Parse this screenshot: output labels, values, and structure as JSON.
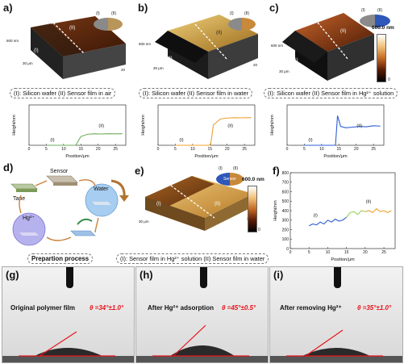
{
  "panel_labels": {
    "a": "a)",
    "b": "b)",
    "c": "c)",
    "d": "d)",
    "e": "e)",
    "f": "f)",
    "g": "(g)",
    "h": "(h)",
    "i": "(i)"
  },
  "afm": {
    "region_I": "(I)",
    "region_II": "(II)",
    "legend_I": "(I)",
    "legend_II": "(II)",
    "scale_max": "600.0 nm",
    "axis_600": "600 nm",
    "axis_30um": "30 μm",
    "axis_20": "20",
    "axis_10": "10",
    "axis_0": "0"
  },
  "captions": {
    "a": {
      "I": "(I): Silicon wafer",
      "II": "(II) Sensor film in air"
    },
    "b": {
      "I": "(I): Silicon wafer",
      "II": "(II) Sensor film in water"
    },
    "c": {
      "I": "(I): Silicon wafer",
      "II": "(II) Sensor film in Hg²⁺ solution"
    },
    "e": {
      "I": "(I): Sensor film in Hg²⁺ solution",
      "II": "(II) Sensor film in water"
    }
  },
  "process": {
    "sensor": "Sensor",
    "water": "Water",
    "tape": "Tape",
    "hg": "Hg²⁺",
    "title": "Prepartion process"
  },
  "f_scale_label": "Sensor",
  "chart_data": [
    {
      "id": "a",
      "type": "line",
      "xlabel": "Position/μm",
      "ylabel": "Height/nm",
      "xticks": [
        0,
        5,
        10,
        15,
        20,
        25
      ],
      "ylim": [
        0,
        600
      ],
      "x": [
        5,
        8,
        11,
        13.5,
        15,
        17,
        19,
        21,
        23,
        25,
        27
      ],
      "y": [
        0,
        0,
        0,
        0,
        130,
        165,
        170,
        168,
        172,
        170,
        172
      ],
      "color": "#6cae5a",
      "annotations": [
        "(I)",
        "(II)"
      ]
    },
    {
      "id": "b",
      "type": "line",
      "xlabel": "Position/μm",
      "ylabel": "Height/nm",
      "xticks": [
        0,
        5,
        10,
        15,
        20,
        25
      ],
      "ylim": [
        0,
        600
      ],
      "x": [
        5,
        10,
        13,
        15.2,
        16,
        18,
        20,
        22,
        24,
        26,
        27
      ],
      "y": [
        0,
        0,
        0,
        0,
        300,
        390,
        405,
        410,
        408,
        410,
        410
      ],
      "color": "#f0a030",
      "annotations": [
        "(I)",
        "(II)"
      ]
    },
    {
      "id": "c",
      "type": "line",
      "xlabel": "Position/μm",
      "ylabel": "Height/nm",
      "xticks": [
        0,
        5,
        10,
        15,
        20,
        25
      ],
      "ylim": [
        0,
        600
      ],
      "x": [
        5,
        10,
        13,
        14,
        14.6,
        15.5,
        17,
        19,
        21,
        23,
        25,
        27
      ],
      "y": [
        0,
        0,
        0,
        0,
        440,
        280,
        260,
        270,
        280,
        275,
        290,
        285
      ],
      "color": "#2d5fd6",
      "annotations": [
        "(I)",
        "(II)"
      ]
    },
    {
      "id": "f",
      "type": "line",
      "xlabel": "Position/μm",
      "ylabel": "Height/nm",
      "xticks": [
        0,
        5,
        10,
        15,
        20,
        25
      ],
      "yticks": [
        0,
        100,
        200,
        300,
        400,
        500,
        600,
        700,
        800
      ],
      "ylim": [
        0,
        800
      ],
      "series": [
        {
          "color": "#2d5fd6",
          "x": [
            5,
            6,
            7,
            8,
            9,
            10,
            11,
            12,
            13,
            14,
            15
          ],
          "y": [
            240,
            260,
            250,
            280,
            260,
            300,
            280,
            310,
            290,
            300,
            330
          ]
        },
        {
          "color": "#9acd5a",
          "x": [
            15,
            16,
            17,
            18,
            19,
            20
          ],
          "y": [
            330,
            380,
            390,
            360,
            400,
            390
          ]
        },
        {
          "color": "#f0a030",
          "x": [
            20,
            21,
            22,
            23,
            24,
            25,
            26,
            27
          ],
          "y": [
            390,
            400,
            380,
            420,
            390,
            400,
            380,
            400
          ]
        }
      ],
      "annotations": [
        "(I)",
        "(II)"
      ]
    }
  ],
  "contact": {
    "g": {
      "text": "Original polymer film",
      "angle": "θ =34°±1.0°",
      "angle_deg": 34
    },
    "h": {
      "text": "After Hg²⁺ adsorption",
      "angle": "θ =45°±0.5°",
      "angle_deg": 45
    },
    "i": {
      "text": "After removing Hg²⁺",
      "angle": "θ =35°±1.0°",
      "angle_deg": 35
    }
  }
}
